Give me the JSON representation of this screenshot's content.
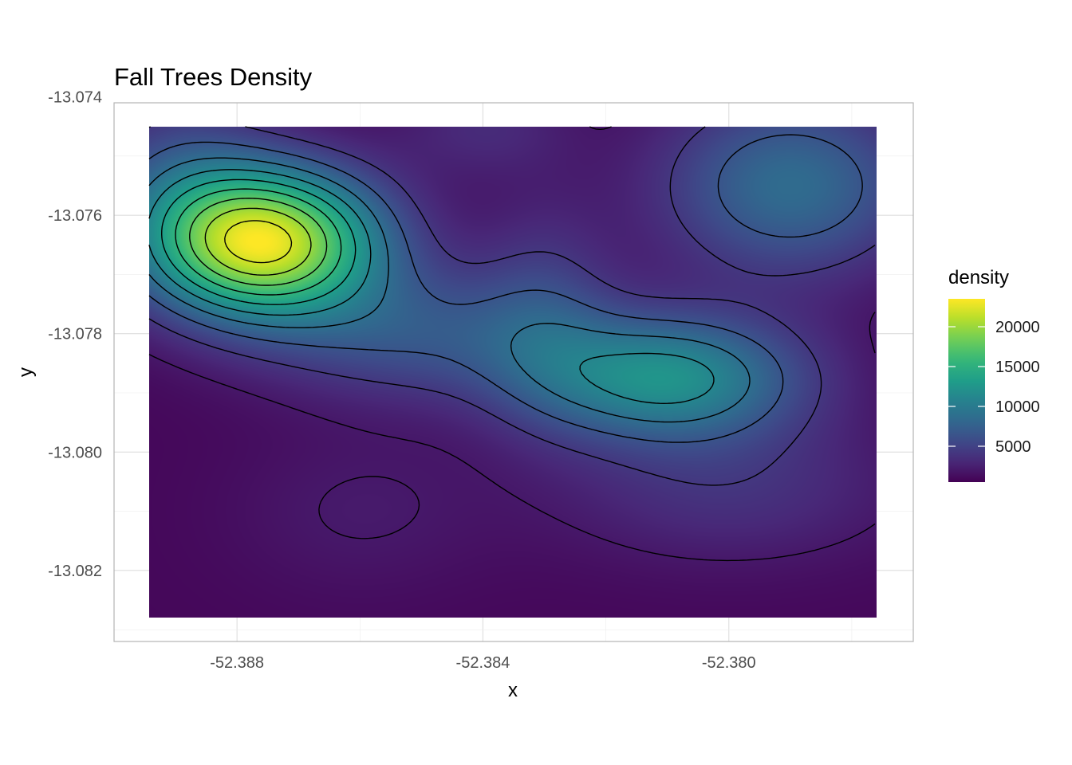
{
  "chart_data": {
    "type": "heatmap",
    "title": "Fall Trees Density",
    "xlabel": "x",
    "ylabel": "y",
    "xlim": [
      -52.39,
      -52.377
    ],
    "ylim": [
      -13.0832,
      -13.0741
    ],
    "x_ticks": [
      -52.388,
      -52.384,
      -52.38
    ],
    "x_tick_labels": [
      "-52.388",
      "-52.384",
      "-52.380"
    ],
    "y_ticks": [
      -13.074,
      -13.076,
      -13.078,
      -13.08,
      -13.082
    ],
    "y_tick_labels": [
      "-13.074",
      "-13.076",
      "-13.078",
      "-13.080",
      "-13.082"
    ],
    "grid": true,
    "colorscale": "viridis",
    "legend": {
      "title": "density",
      "position": "right",
      "min": 500,
      "max": 23500,
      "ticks": [
        5000,
        10000,
        15000,
        20000
      ],
      "tick_labels": [
        "5000",
        "10000",
        "15000",
        "20000"
      ]
    },
    "background_density": 900,
    "density_peaks": [
      {
        "x": -52.3876,
        "y": -13.07645,
        "amplitude": 21800,
        "sx": 0.00135,
        "sy": 0.00088
      },
      {
        "x": -52.381,
        "y": -13.07875,
        "amplitude": 10800,
        "sx": 0.00155,
        "sy": 0.00075
      },
      {
        "x": -52.379,
        "y": -13.0755,
        "amplitude": 7600,
        "sx": 0.0015,
        "sy": 0.0011
      },
      {
        "x": -52.385,
        "y": -13.078,
        "amplitude": 5200,
        "sx": 0.0018,
        "sy": 0.0008
      },
      {
        "x": -52.383,
        "y": -13.0775,
        "amplitude": 3000,
        "sx": 0.0008,
        "sy": 0.0013
      },
      {
        "x": -52.389,
        "y": -13.0752,
        "amplitude": 3500,
        "sx": 0.001,
        "sy": 0.001
      },
      {
        "x": -52.384,
        "y": -13.0745,
        "amplitude": 2200,
        "sx": 0.001,
        "sy": 0.0006
      },
      {
        "x": -52.38,
        "y": -13.0806,
        "amplitude": 2800,
        "sx": 0.002,
        "sy": 0.0009
      },
      {
        "x": -52.386,
        "y": -13.081,
        "amplitude": 1200,
        "sx": 0.0015,
        "sy": 0.001
      }
    ],
    "contour_levels": [
      2000,
      4200,
      6500,
      8800,
      11000,
      13200,
      15400,
      17600,
      19800,
      22000
    ]
  }
}
